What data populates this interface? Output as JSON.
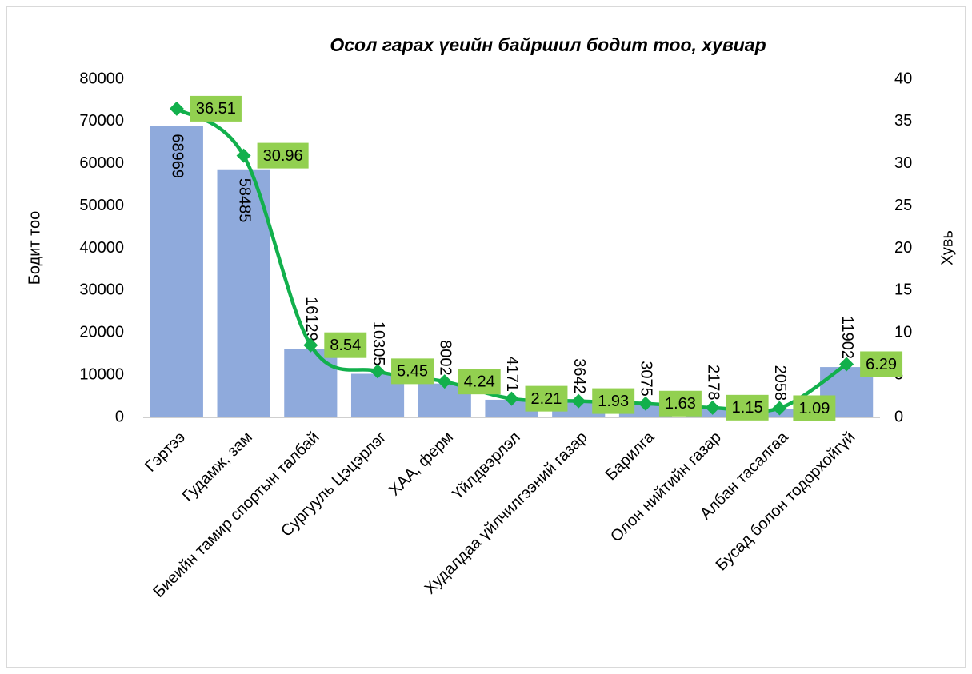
{
  "chart_data": {
    "type": "combo",
    "title": "Осол гарах үеийн байршил бодит тоо, хувиар",
    "y_label": "Бодит тоо",
    "y2_label": "Хувь",
    "categories": [
      "Гэртээ",
      "Гудамж, зам",
      "Биеийн тамир спортын талбай",
      "Сургууль Цэцэрлэг",
      "ХАА, ферм",
      "Үйлдвэрлэл",
      "Худалдаа үйлчилгээний газар",
      "Барилга",
      "Олон нийтийн газар",
      "Албан тасалгаа",
      "Бусад болон тодорхойгүй"
    ],
    "series": [
      {
        "type": "bar",
        "color": "#8faadc",
        "values": [
          68969,
          58485,
          16129,
          10305,
          8002,
          4171,
          3642,
          3075,
          2178,
          2058,
          11902
        ]
      },
      {
        "type": "line",
        "axis": "y2",
        "color": "#12b04c",
        "label_color": "#92d050",
        "values": [
          36.51,
          30.96,
          8.54,
          5.45,
          4.24,
          2.21,
          1.93,
          1.63,
          1.15,
          1.09,
          6.29
        ]
      }
    ],
    "ylim": [
      0,
      80000
    ],
    "yticks": [
      0,
      10000,
      20000,
      30000,
      40000,
      50000,
      60000,
      70000,
      80000
    ],
    "y2lim": [
      0,
      40
    ],
    "y2ticks": [
      0,
      5,
      10,
      15,
      20,
      25,
      30,
      35,
      40
    ],
    "grid": false
  }
}
